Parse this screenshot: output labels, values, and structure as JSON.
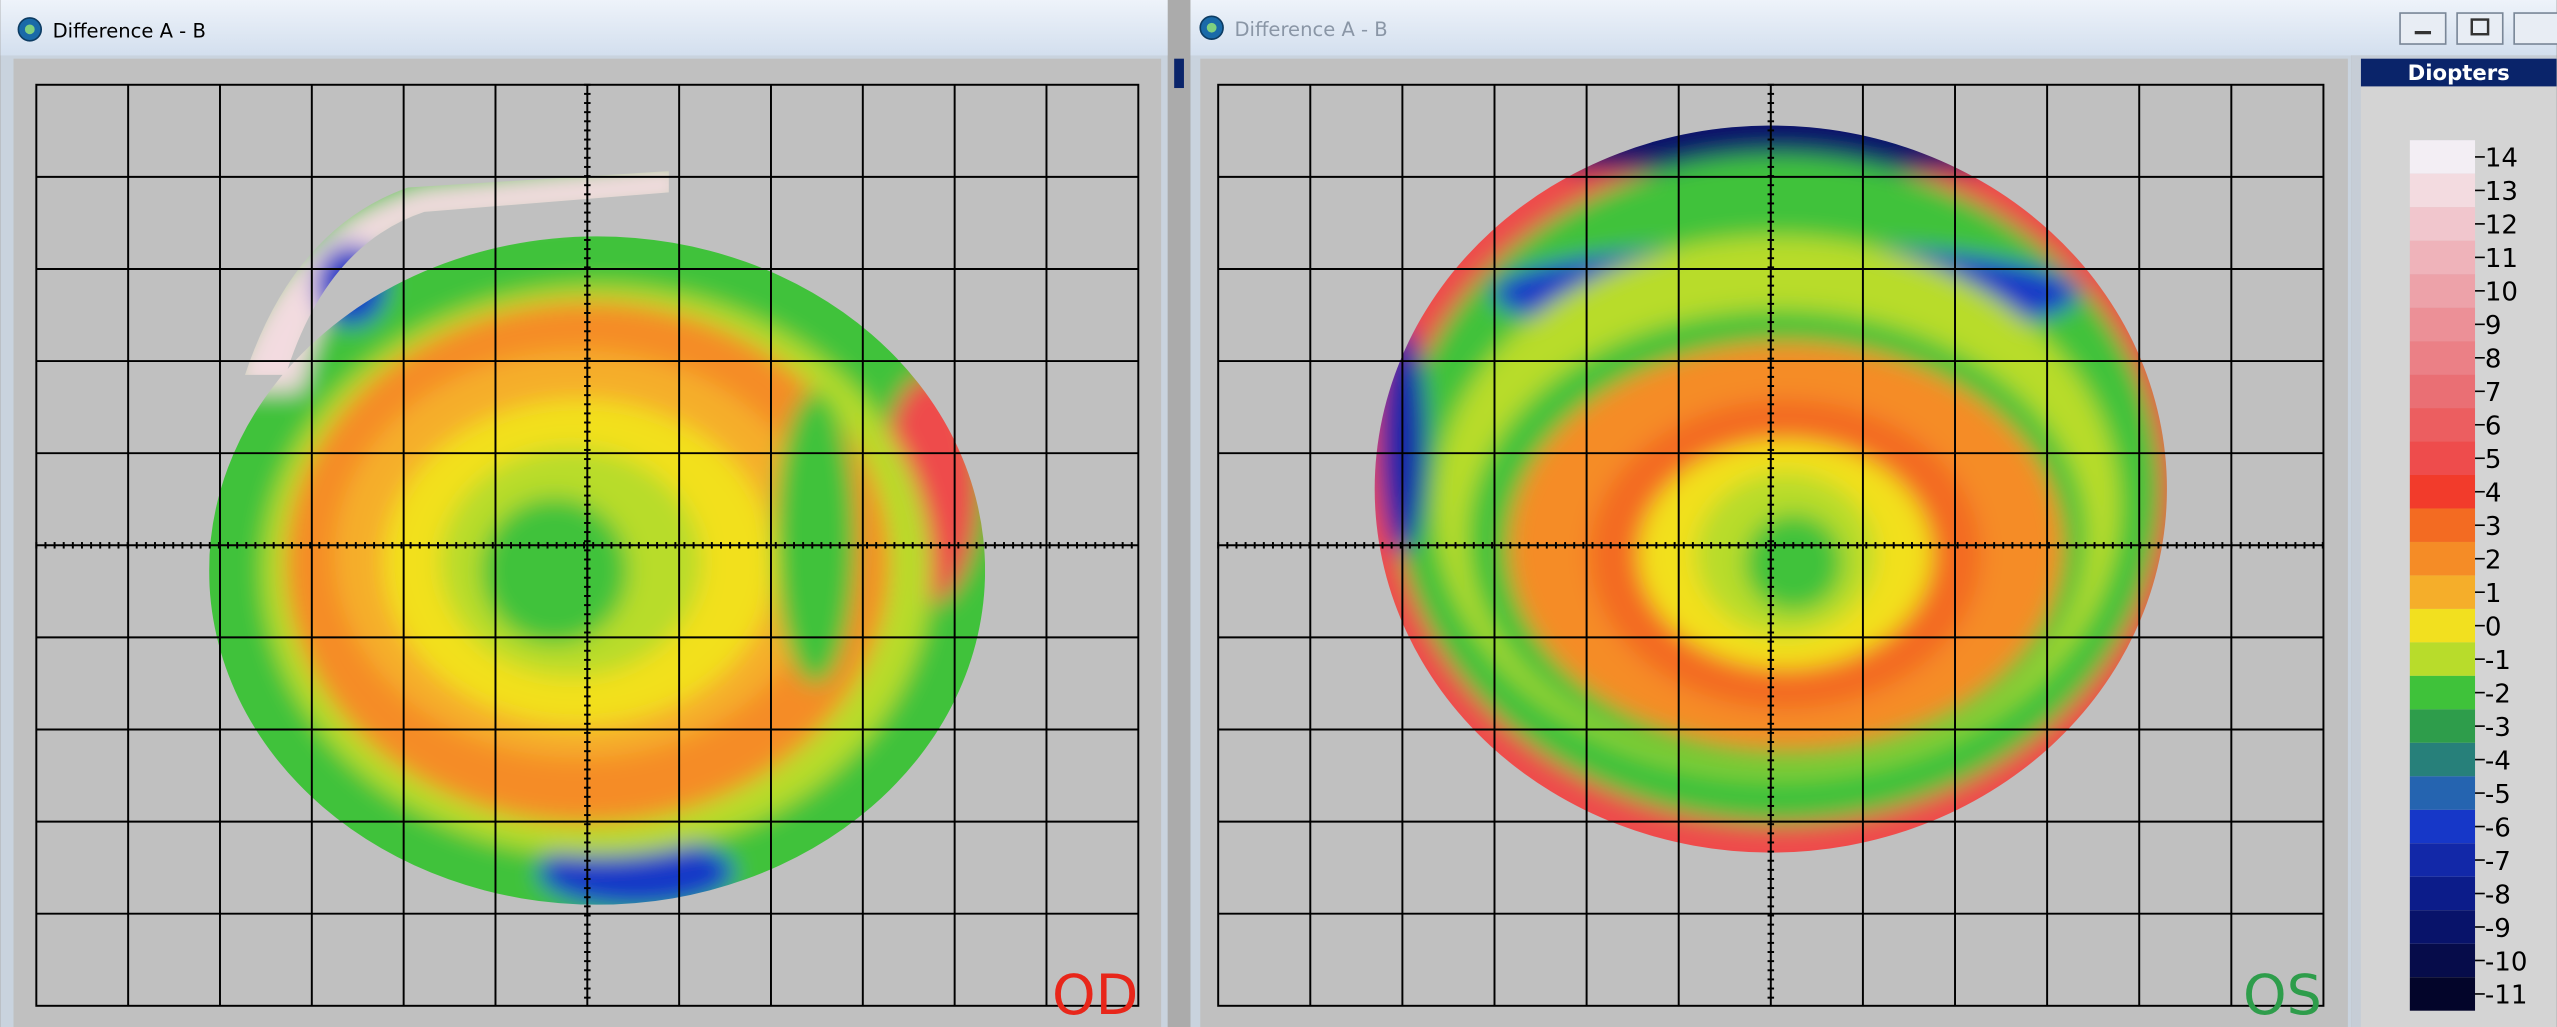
{
  "windows": [
    {
      "title": "Difference A - B",
      "eye_label": "OD"
    },
    {
      "title": "Difference A - B",
      "eye_label": "OS"
    }
  ],
  "legend": {
    "title": "Diopters",
    "entries": [
      {
        "label": 14,
        "color": "#f3eef4"
      },
      {
        "label": 13,
        "color": "#f3dbe0"
      },
      {
        "label": 12,
        "color": "#f1c6cd"
      },
      {
        "label": 11,
        "color": "#efb3ba"
      },
      {
        "label": 10,
        "color": "#eda2a9"
      },
      {
        "label": 9,
        "color": "#ec9097"
      },
      {
        "label": 8,
        "color": "#eb8086"
      },
      {
        "label": 7,
        "color": "#ea6f74"
      },
      {
        "label": 6,
        "color": "#ec5e60"
      },
      {
        "label": 5,
        "color": "#ee4c4c"
      },
      {
        "label": 4,
        "color": "#f23b2b"
      },
      {
        "label": 3,
        "color": "#f36b22"
      },
      {
        "label": 2,
        "color": "#f58c26"
      },
      {
        "label": 1,
        "color": "#f5ae2a"
      },
      {
        "label": 0,
        "color": "#f2e01f"
      },
      {
        "label": -1,
        "color": "#b8dc2b"
      },
      {
        "label": -2,
        "color": "#3fc23a"
      },
      {
        "label": -3,
        "color": "#2e9d4b"
      },
      {
        "label": -4,
        "color": "#27807a"
      },
      {
        "label": -5,
        "color": "#2564b0"
      },
      {
        "label": -6,
        "color": "#1637c8"
      },
      {
        "label": -7,
        "color": "#1228a8"
      },
      {
        "label": -8,
        "color": "#0c1c8a"
      },
      {
        "label": -9,
        "color": "#08136a"
      },
      {
        "label": -10,
        "color": "#060c4a"
      },
      {
        "label": -11,
        "color": "#03052a"
      }
    ]
  }
}
